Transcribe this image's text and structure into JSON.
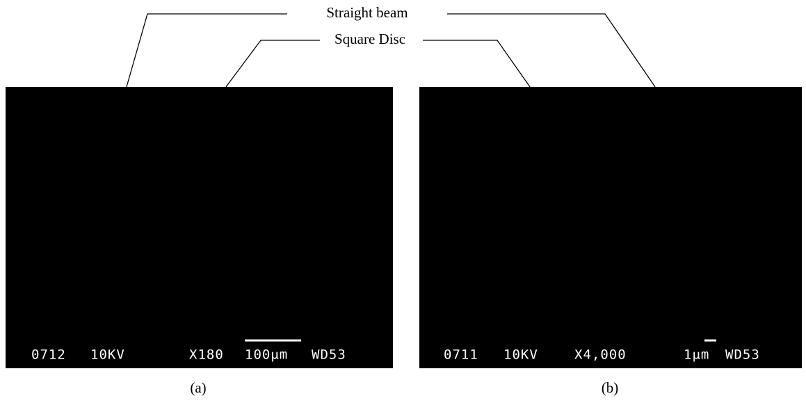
{
  "labels": {
    "straight_beam": "Straight beam",
    "square_disc": "Square Disc"
  },
  "panels": [
    {
      "caption": "(a)",
      "info": [
        "0712",
        "10KV",
        "X180",
        "100μm",
        "WD53"
      ]
    },
    {
      "caption": "(b)",
      "info": [
        "0711",
        "10KV",
        "X4,000",
        "1μm",
        "WD53"
      ]
    }
  ]
}
